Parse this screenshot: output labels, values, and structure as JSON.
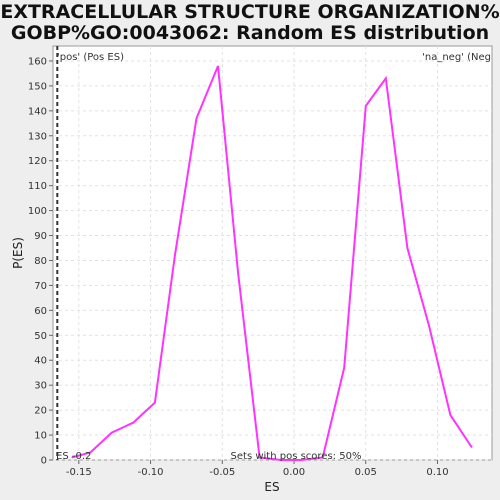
{
  "chart_data": {
    "type": "line",
    "title": "EXTRACELLULAR STRUCTURE ORGANIZATION%",
    "subtitle": "GOBP%GO:0043062: Random ES distribution",
    "xlabel": "ES",
    "ylabel": "P(ES)",
    "xlim": [
      -0.168,
      0.138
    ],
    "ylim": [
      0,
      166
    ],
    "x_ticks": [
      "-0.15",
      "-0.10",
      "-0.05",
      "0.00",
      "0.05",
      "0.10"
    ],
    "x_tick_values": [
      -0.15,
      -0.1,
      -0.05,
      0.0,
      0.05,
      0.1
    ],
    "y_ticks": [
      0,
      10,
      20,
      30,
      40,
      50,
      60,
      70,
      80,
      90,
      100,
      110,
      120,
      130,
      140,
      150,
      160
    ],
    "grid": true,
    "series": [
      {
        "color": "#ff33ff",
        "x": [
          -0.155,
          -0.142,
          -0.127,
          -0.112,
          -0.097,
          -0.083,
          -0.068,
          -0.053,
          -0.039,
          -0.024,
          -0.009,
          0.005,
          0.02,
          0.035,
          0.05,
          0.064,
          0.079,
          0.094,
          0.109,
          0.124
        ],
        "y": [
          1,
          3,
          11,
          15,
          23,
          82,
          137,
          158,
          75,
          1,
          0,
          0,
          1,
          37,
          142,
          153,
          85,
          54,
          18,
          5
        ]
      }
    ],
    "es_marker": {
      "x": -0.165,
      "label": "ES -0.2",
      "color": "#333333"
    },
    "legend": {
      "left": {
        "text": "'pos' (Pos ES)",
        "color": "#dd3333"
      },
      "right": {
        "text": "'na_neg' (Neg",
        "color": "#3333cc"
      }
    },
    "annotation": "Sets with pos scores: 50%"
  }
}
